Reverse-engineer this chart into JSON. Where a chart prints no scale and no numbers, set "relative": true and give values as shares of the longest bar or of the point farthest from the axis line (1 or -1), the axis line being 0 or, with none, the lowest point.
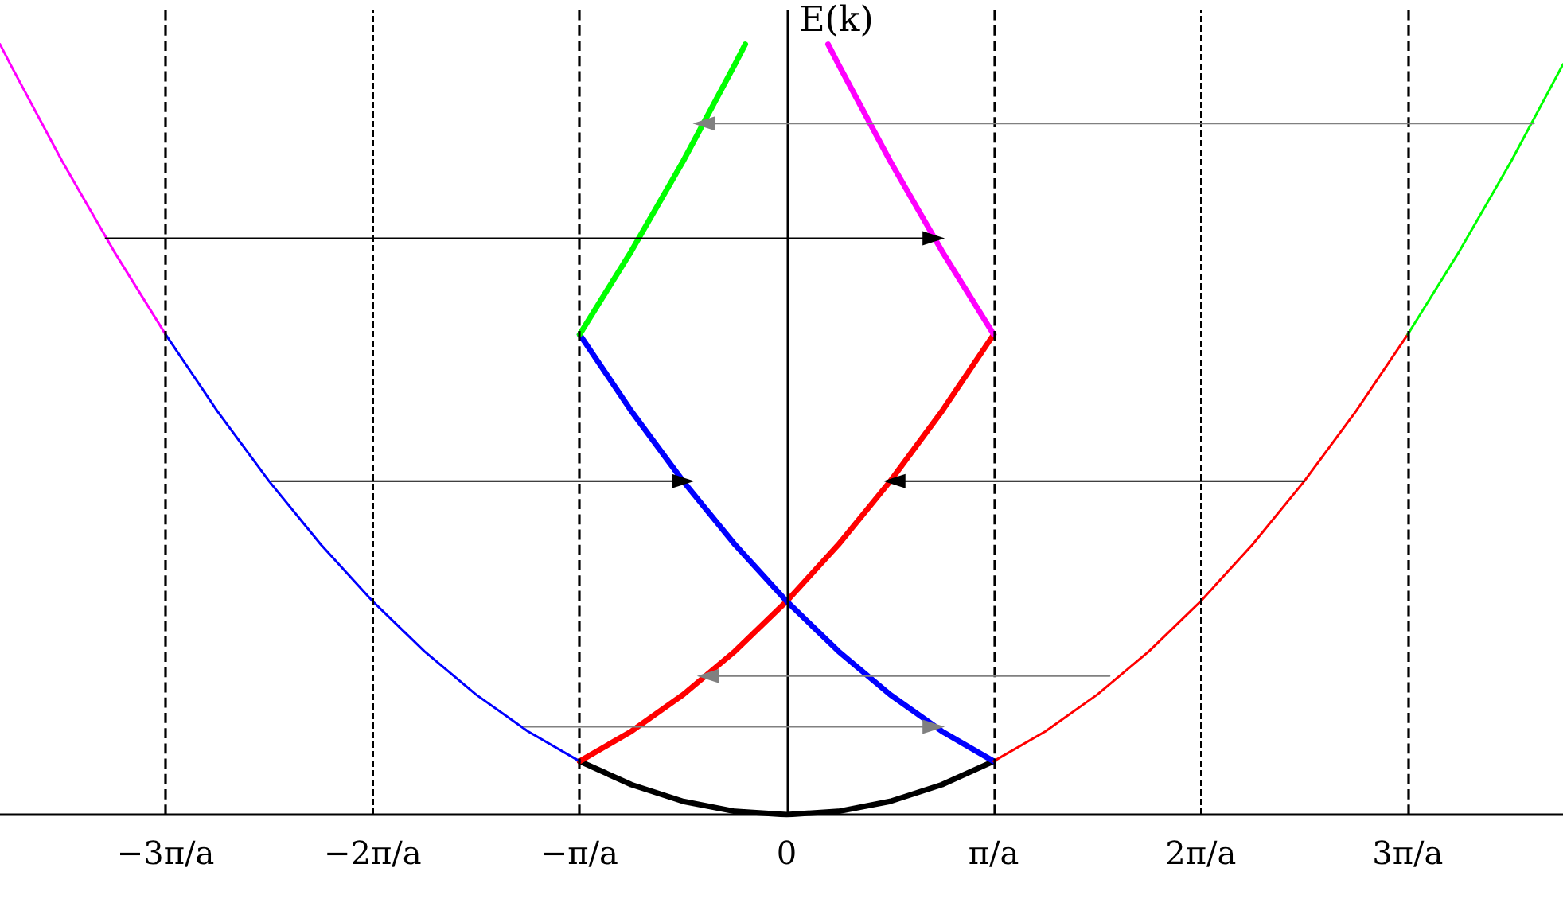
{
  "chart_data": {
    "type": "line",
    "relative": true,
    "ylabel": "E(k)",
    "xlim": [
      -3.8,
      3.75
    ],
    "xticks": [
      {
        "value": -3,
        "label": "−3π/a"
      },
      {
        "value": -2,
        "label": "−2π/a"
      },
      {
        "value": -1,
        "label": "−π/a"
      },
      0,
      {
        "value": 1,
        "label": "π/a"
      },
      {
        "value": 2,
        "label": "2π/a"
      },
      {
        "value": 3,
        "label": "3π/a"
      }
    ],
    "tick_labels": "x",
    "grid": false,
    "marker": "none",
    "series": [
      {
        "color": "#000000",
        "x": [
          -1,
          -0.75,
          -0.5,
          -0.25,
          0,
          0.25,
          0.5,
          0.75,
          1
        ],
        "values": [
          0.0693,
          0.039,
          0.0173,
          0.0043,
          0,
          0.0043,
          0.0173,
          0.039,
          0.0693
        ]
      },
      {
        "color": "#ff0000",
        "x": [
          -1,
          -0.75,
          -0.5,
          -0.25,
          0,
          0.25,
          0.5,
          0.75,
          1
        ],
        "values": [
          0.0693,
          0.1082,
          0.1558,
          0.2121,
          0.277,
          0.3506,
          0.4328,
          0.5237,
          0.6233
        ]
      },
      {
        "color": "#0000ff",
        "x": [
          -1,
          -0.75,
          -0.5,
          -0.25,
          0,
          0.25,
          0.5,
          0.75,
          1
        ],
        "values": [
          0.6233,
          0.5237,
          0.4328,
          0.3506,
          0.277,
          0.2121,
          0.1558,
          0.1082,
          0.0693
        ]
      },
      {
        "color": "#00ff00",
        "x": [
          -1,
          -0.75,
          -0.5,
          -0.25,
          -0.2
        ],
        "values": [
          0.6233,
          0.7315,
          0.8483,
          0.9739,
          1
        ]
      },
      {
        "color": "#ff00ff",
        "x": [
          0.2,
          0.25,
          0.5,
          0.75,
          1
        ],
        "values": [
          1,
          0.9739,
          0.8483,
          0.7315,
          0.6233
        ]
      },
      {
        "color": "#ff00ff",
        "x": [
          -3.8,
          -3.75,
          -3.5,
          -3.25,
          -3
        ],
        "values": [
          1,
          0.9739,
          0.8483,
          0.7315,
          0.6233
        ]
      },
      {
        "color": "#0000ff",
        "x": [
          -3,
          -2.75,
          -2.5,
          -2.25,
          -2,
          -1.75,
          -1.5,
          -1.25,
          -1
        ],
        "values": [
          0.6233,
          0.5237,
          0.4328,
          0.3506,
          0.277,
          0.2121,
          0.1558,
          0.1082,
          0.0693
        ]
      },
      {
        "color": "#ff0000",
        "x": [
          1,
          1.25,
          1.5,
          1.75,
          2,
          2.25,
          2.5,
          2.75,
          3
        ],
        "values": [
          0.0693,
          0.1082,
          0.1558,
          0.2121,
          0.277,
          0.3506,
          0.4328,
          0.5237,
          0.6233
        ]
      },
      {
        "color": "#00ff00",
        "x": [
          3,
          3.25,
          3.5,
          3.75
        ],
        "values": [
          0.6233,
          0.7315,
          0.8483,
          0.9739
        ]
      },
      {
        "color": "#808080",
        "marker": "triangle",
        "x": [
          3.61,
          -0.4
        ],
        "values": [
          0.897,
          0.897
        ]
      },
      {
        "color": "#000000",
        "marker": "triangle",
        "x": [
          -3.29,
          0.71
        ],
        "values": [
          0.748,
          0.748
        ]
      },
      {
        "color": "#000000",
        "marker": "triangle",
        "x": [
          -2.49,
          -0.5
        ],
        "values": [
          0.4328,
          0.4328
        ]
      },
      {
        "color": "#000000",
        "marker": "triangle",
        "x": [
          2.5,
          0.52
        ],
        "values": [
          0.4328,
          0.4328
        ]
      },
      {
        "color": "#808080",
        "marker": "triangle",
        "x": [
          1.56,
          -0.38
        ],
        "values": [
          0.18,
          0.18
        ]
      },
      {
        "color": "#808080",
        "marker": "triangle",
        "x": [
          -1.27,
          0.71
        ],
        "values": [
          0.114,
          0.114
        ]
      }
    ],
    "ref_lines": [
      {
        "axis": "x",
        "value": -3,
        "line_style": "dashed",
        "color": "#000000"
      },
      {
        "axis": "x",
        "value": -2,
        "line_style": "dashed",
        "color": "#000000"
      },
      {
        "axis": "x",
        "value": -1,
        "line_style": "dashed",
        "color": "#000000"
      },
      {
        "axis": "x",
        "value": 0,
        "line_style": "solid",
        "color": "#000000"
      },
      {
        "axis": "x",
        "value": 1,
        "line_style": "dashed",
        "color": "#000000"
      },
      {
        "axis": "x",
        "value": 2,
        "line_style": "dashed",
        "color": "#000000"
      },
      {
        "axis": "x",
        "value": 3,
        "line_style": "dashed",
        "color": "#000000"
      }
    ]
  }
}
